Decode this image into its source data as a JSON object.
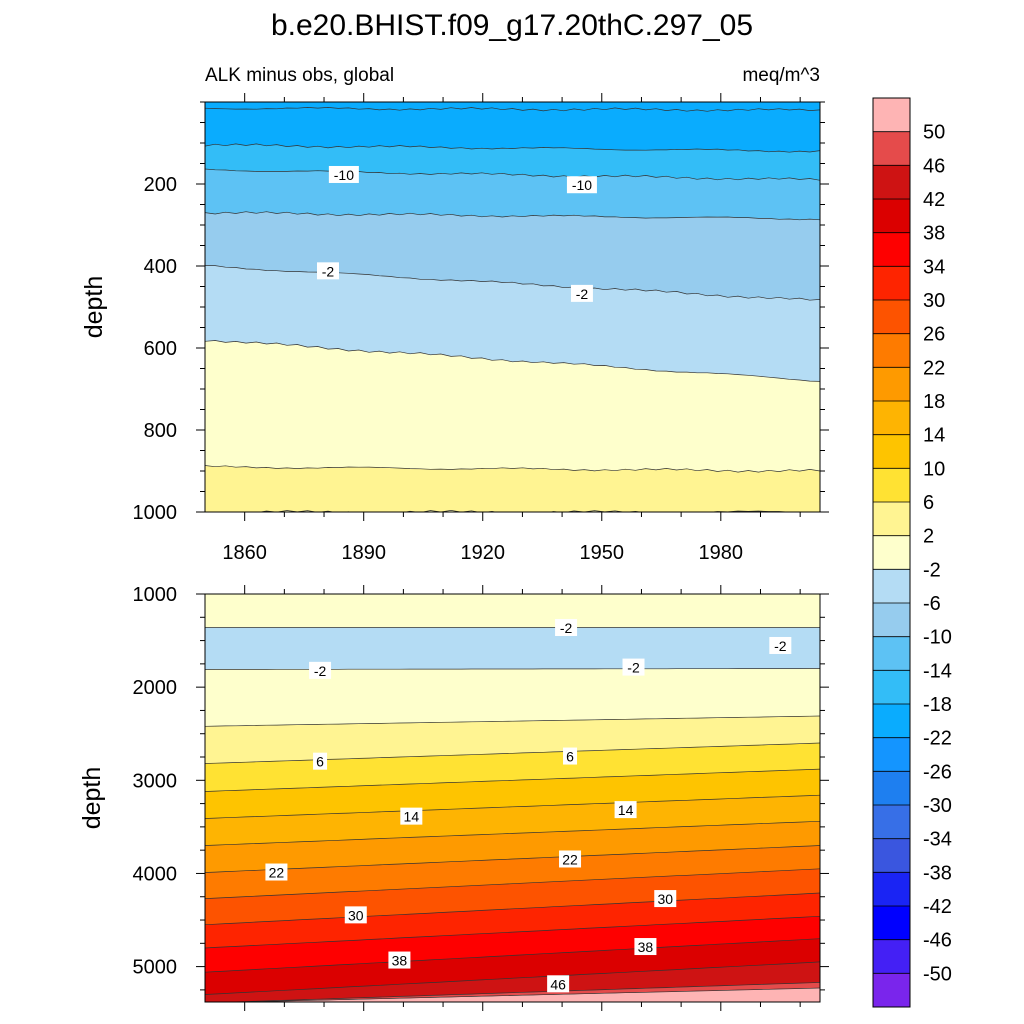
{
  "title": "b.e20.BHIST.f09_g17.20thC.297_05",
  "chart_data": [
    {
      "type": "heatmap",
      "subtitle_left": "ALK minus obs, global",
      "subtitle_right": "meq/m^3",
      "ylabel": "depth",
      "xlim": [
        1850,
        2005
      ],
      "ylim": [
        0,
        1000
      ],
      "yticks": [
        "200",
        "400",
        "600",
        "800",
        "1000"
      ],
      "xticks": [
        "1860",
        "1890",
        "1920",
        "1950",
        "1980"
      ],
      "contours": [
        {
          "level": -14,
          "d0": 15,
          "d1": 20,
          "color": "#0aacfe"
        },
        {
          "level": -18,
          "d0": 105,
          "d1": 120,
          "color": "#33bdf7"
        },
        {
          "level": -14,
          "d0": 165,
          "d1": 190,
          "color": "#5dc2f4"
        },
        {
          "level": -10,
          "d0": 270,
          "d1": 285,
          "color": "#96ccee"
        },
        {
          "level": -6,
          "d0": 400,
          "d1": 485,
          "color": "#b4dcf4"
        },
        {
          "level": -2,
          "d0": 580,
          "d1": 680,
          "color": "#feffcc"
        },
        {
          "level": 2,
          "d0": 890,
          "d1": 900,
          "color": "#fff492"
        },
        {
          "level": -2,
          "d0": 1000,
          "d1": 1000,
          "color": "#feffcc"
        }
      ],
      "contour_labels": [
        {
          "text": "-10",
          "year": 1885,
          "depth": 178
        },
        {
          "text": "-10",
          "year": 1945,
          "depth": 203
        },
        {
          "text": "-2",
          "year": 1881,
          "depth": 413
        },
        {
          "text": "-2",
          "year": 1945,
          "depth": 468
        }
      ]
    },
    {
      "type": "heatmap",
      "ylabel": "depth",
      "xlim": [
        1850,
        2005
      ],
      "ylim": [
        1000,
        5380
      ],
      "yticks": [
        "1000",
        "2000",
        "3000",
        "4000",
        "5000"
      ],
      "contours": [
        {
          "level": 2,
          "d0": 1000,
          "d1": 1000,
          "color": "#feffcc"
        },
        {
          "level": -2,
          "d0": 1360,
          "d1": 1360,
          "color": "#b4dcf4"
        },
        {
          "level": 2,
          "d0": 1810,
          "d1": 1800,
          "color": "#feffcc"
        },
        {
          "level": 2,
          "d0": 2420,
          "d1": 2310,
          "color": "#fff492"
        },
        {
          "level": 6,
          "d0": 2820,
          "d1": 2600,
          "color": "#ffe233"
        },
        {
          "level": 10,
          "d0": 3120,
          "d1": 2880,
          "color": "#fec400"
        },
        {
          "level": 14,
          "d0": 3410,
          "d1": 3160,
          "color": "#feb402"
        },
        {
          "level": 18,
          "d0": 3700,
          "d1": 3440,
          "color": "#fe9a00"
        },
        {
          "level": 22,
          "d0": 3990,
          "d1": 3700,
          "color": "#fe7b00"
        },
        {
          "level": 26,
          "d0": 4270,
          "d1": 3950,
          "color": "#fd5300"
        },
        {
          "level": 30,
          "d0": 4550,
          "d1": 4210,
          "color": "#fe2400"
        },
        {
          "level": 34,
          "d0": 4800,
          "d1": 4460,
          "color": "#fe0000"
        },
        {
          "level": 38,
          "d0": 5060,
          "d1": 4700,
          "color": "#db0000"
        },
        {
          "level": 42,
          "d0": 5300,
          "d1": 4950,
          "color": "#ce1313"
        },
        {
          "level": 46,
          "d0": 5390,
          "d1": 5170,
          "color": "#e54b4b"
        },
        {
          "level": 50,
          "d0": 5390,
          "d1": 5230,
          "color": "#feb4b4"
        }
      ],
      "contour_labels": [
        {
          "text": "-2",
          "year": 1941,
          "depth": 1365
        },
        {
          "text": "-2",
          "year": 1995,
          "depth": 1558
        },
        {
          "text": "-2",
          "year": 1879,
          "depth": 1825
        },
        {
          "text": "-2",
          "year": 1958,
          "depth": 1790
        },
        {
          "text": "6",
          "year": 1879,
          "depth": 2800
        },
        {
          "text": "6",
          "year": 1942,
          "depth": 2745
        },
        {
          "text": "14",
          "year": 1902,
          "depth": 3390
        },
        {
          "text": "14",
          "year": 1956,
          "depth": 3320
        },
        {
          "text": "22",
          "year": 1868,
          "depth": 3990
        },
        {
          "text": "22",
          "year": 1942,
          "depth": 3850
        },
        {
          "text": "30",
          "year": 1888,
          "depth": 4450
        },
        {
          "text": "30",
          "year": 1966,
          "depth": 4275
        },
        {
          "text": "38",
          "year": 1899,
          "depth": 4935
        },
        {
          "text": "38",
          "year": 1961,
          "depth": 4790
        },
        {
          "text": "46",
          "year": 1939,
          "depth": 5190
        }
      ]
    }
  ],
  "colorbar": {
    "labels": [
      "50",
      "46",
      "42",
      "38",
      "34",
      "30",
      "26",
      "22",
      "18",
      "14",
      "10",
      "6",
      "2",
      "-2",
      "-6",
      "-10",
      "-14",
      "-18",
      "-22",
      "-26",
      "-30",
      "-34",
      "-38",
      "-42",
      "-46",
      "-50"
    ],
    "colors": [
      "#feb4b4",
      "#e54b4b",
      "#ce1313",
      "#db0000",
      "#fe0000",
      "#fe2400",
      "#fd5300",
      "#fe7b00",
      "#fe9a00",
      "#feb402",
      "#fec400",
      "#ffe233",
      "#fff492",
      "#feffcc",
      "#b4dcf4",
      "#96ccee",
      "#5dc2f4",
      "#33bdf7",
      "#0aacfe",
      "#1495ff",
      "#1e7ff0",
      "#376fe7",
      "#3a56df",
      "#1a24f4",
      "#0000ff",
      "#4420f5",
      "#7a25ec"
    ]
  }
}
